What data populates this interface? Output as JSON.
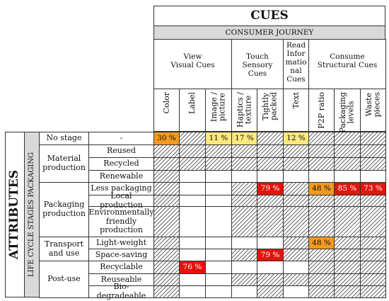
{
  "title": "CUES",
  "journey": "CONSUMER JOURNEY",
  "groups": [
    {
      "label": "View\nVisual Cues"
    },
    {
      "label": "Touch\nSensory\nCues"
    },
    {
      "label": "Read\nInfor\nmatio\nnal\nCues"
    },
    {
      "label": "Consume\nStructural Cues"
    }
  ],
  "cues": [
    "Color",
    "Label",
    "Image /\npicture",
    "Haptics /\ntexture",
    "Tightly\npacked",
    "Text",
    "P2P ratio",
    "Packaging\nlevels",
    "Waste\npieces"
  ],
  "attributes_label": "ATTRIBUTES",
  "lifecycle_label": "LIFE CYCLE STAGES PACKAGING",
  "stages": [
    {
      "label": "No stage"
    },
    {
      "label": "Material\nproduction"
    },
    {
      "label": "Packaging\nproduction"
    },
    {
      "label": "Transport\nand use"
    },
    {
      "label": "Post-use"
    }
  ],
  "rows": [
    {
      "label": "-",
      "cells": [
        {
          "t": "v",
          "v": "30 %",
          "c": "#f59a1f"
        },
        {
          "t": "h"
        },
        {
          "t": "v",
          "v": "11 %",
          "c": "#fde87e"
        },
        {
          "t": "v",
          "v": "17 %",
          "c": "#fde87e"
        },
        {
          "t": "h"
        },
        {
          "t": "v",
          "v": "12 %",
          "c": "#fde87e"
        },
        {
          "t": "h"
        },
        {
          "t": "h"
        },
        {
          "t": "h"
        }
      ]
    },
    {
      "label": "Reused",
      "cells": [
        {
          "t": "h"
        },
        {
          "t": "h"
        },
        {
          "t": "h"
        },
        {
          "t": "h"
        },
        {
          "t": "h"
        },
        {
          "t": "h"
        },
        {
          "t": "h"
        },
        {
          "t": "h"
        },
        {
          "t": "h"
        }
      ]
    },
    {
      "label": "Recycled",
      "cells": [
        {
          "t": "h"
        },
        {
          "t": "h"
        },
        {
          "t": "h"
        },
        {
          "t": "h"
        },
        {
          "t": "h"
        },
        {
          "t": "h"
        },
        {
          "t": "h"
        },
        {
          "t": "h"
        },
        {
          "t": "h"
        }
      ]
    },
    {
      "label": "Renewable",
      "cells": [
        {
          "t": "h"
        },
        {
          "t": "e"
        },
        {
          "t": "e"
        },
        {
          "t": "e"
        },
        {
          "t": "e"
        },
        {
          "t": "e"
        },
        {
          "t": "e"
        },
        {
          "t": "e"
        },
        {
          "t": "e"
        }
      ]
    },
    {
      "label": "Less packaging",
      "cells": [
        {
          "t": "h"
        },
        {
          "t": "e"
        },
        {
          "t": "e"
        },
        {
          "t": "h"
        },
        {
          "t": "v",
          "v": "79 %",
          "c": "#e2140c"
        },
        {
          "t": "h"
        },
        {
          "t": "v",
          "v": "48 %",
          "c": "#f59a1f"
        },
        {
          "t": "v",
          "v": "85 %",
          "c": "#e2140c"
        },
        {
          "t": "v",
          "v": "73 %",
          "c": "#e2140c"
        }
      ]
    },
    {
      "label": "Local production",
      "cells": [
        {
          "t": "h"
        },
        {
          "t": "e"
        },
        {
          "t": "e"
        },
        {
          "t": "h"
        },
        {
          "t": "h"
        },
        {
          "t": "h"
        },
        {
          "t": "h"
        },
        {
          "t": "h"
        },
        {
          "t": "h"
        }
      ]
    },
    {
      "label": "Environmentally\nfriendly\nproduction",
      "cells": [
        {
          "t": "h"
        },
        {
          "t": "e"
        },
        {
          "t": "e"
        },
        {
          "t": "h"
        },
        {
          "t": "h"
        },
        {
          "t": "h"
        },
        {
          "t": "h"
        },
        {
          "t": "h"
        },
        {
          "t": "h"
        }
      ]
    },
    {
      "label": "Light-weight",
      "cells": [
        {
          "t": "h"
        },
        {
          "t": "e"
        },
        {
          "t": "e"
        },
        {
          "t": "e"
        },
        {
          "t": "e"
        },
        {
          "t": "h"
        },
        {
          "t": "v",
          "v": "48 %",
          "c": "#f59a1f"
        },
        {
          "t": "h"
        },
        {
          "t": "h"
        }
      ]
    },
    {
      "label": "Space-saving",
      "cells": [
        {
          "t": "h"
        },
        {
          "t": "e"
        },
        {
          "t": "e"
        },
        {
          "t": "h"
        },
        {
          "t": "v",
          "v": "79 %",
          "c": "#e2140c"
        },
        {
          "t": "h"
        },
        {
          "t": "h"
        },
        {
          "t": "h"
        },
        {
          "t": "h"
        }
      ]
    },
    {
      "label": "Recyclable",
      "cells": [
        {
          "t": "h"
        },
        {
          "t": "v",
          "v": "76 %",
          "c": "#e2140c"
        },
        {
          "t": "e"
        },
        {
          "t": "e"
        },
        {
          "t": "e"
        },
        {
          "t": "e"
        },
        {
          "t": "h"
        },
        {
          "t": "h"
        },
        {
          "t": "h"
        }
      ]
    },
    {
      "label": "Reuseable",
      "cells": [
        {
          "t": "h"
        },
        {
          "t": "e"
        },
        {
          "t": "e"
        },
        {
          "t": "h"
        },
        {
          "t": "h"
        },
        {
          "t": "h"
        },
        {
          "t": "h"
        },
        {
          "t": "h"
        },
        {
          "t": "h"
        }
      ]
    },
    {
      "label": "Bio-degradeable",
      "cells": [
        {
          "t": "h"
        },
        {
          "t": "e"
        },
        {
          "t": "e"
        },
        {
          "t": "e"
        },
        {
          "t": "h"
        },
        {
          "t": "e"
        },
        {
          "t": "h"
        },
        {
          "t": "h"
        },
        {
          "t": "h"
        }
      ]
    }
  ]
}
